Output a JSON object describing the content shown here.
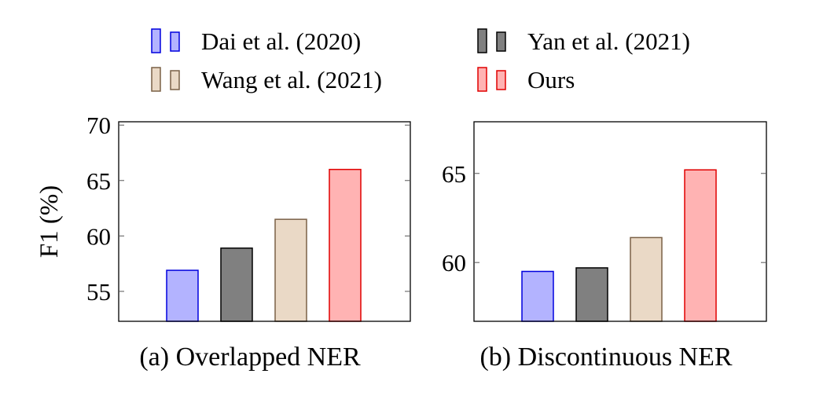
{
  "legend": [
    {
      "label": "Dai et al. (2020)",
      "fill": "#b3b3ff",
      "stroke": "#0000dd"
    },
    {
      "label": "Yan et al. (2021)",
      "fill": "#808080",
      "stroke": "#000000"
    },
    {
      "label": "Wang et al. (2021)",
      "fill": "#ead9c6",
      "stroke": "#7a6147"
    },
    {
      "label": "Ours",
      "fill": "#ffb3b3",
      "stroke": "#e00000"
    }
  ],
  "chart_data": [
    {
      "type": "bar",
      "caption": "(a) Overlapped NER",
      "ylabel": "F1 (%)",
      "categories": [
        "Dai et al. (2020)",
        "Yan et al. (2021)",
        "Wang et al. (2021)",
        "Ours"
      ],
      "values": [
        56.9,
        58.9,
        61.5,
        66.0
      ],
      "ylim": [
        52.3,
        70.3
      ],
      "yticks": [
        55,
        60,
        65,
        70
      ],
      "ytick_labels": [
        "55",
        "60",
        "65",
        "70"
      ]
    },
    {
      "type": "bar",
      "caption": "(b) Discontinuous NER",
      "ylabel": "",
      "categories": [
        "Dai et al. (2020)",
        "Yan et al. (2021)",
        "Wang et al. (2021)",
        "Ours"
      ],
      "values": [
        59.5,
        59.7,
        61.4,
        65.2
      ],
      "ylim": [
        56.7,
        67.9
      ],
      "yticks": [
        60,
        65
      ],
      "ytick_labels": [
        "60",
        "65"
      ]
    }
  ]
}
